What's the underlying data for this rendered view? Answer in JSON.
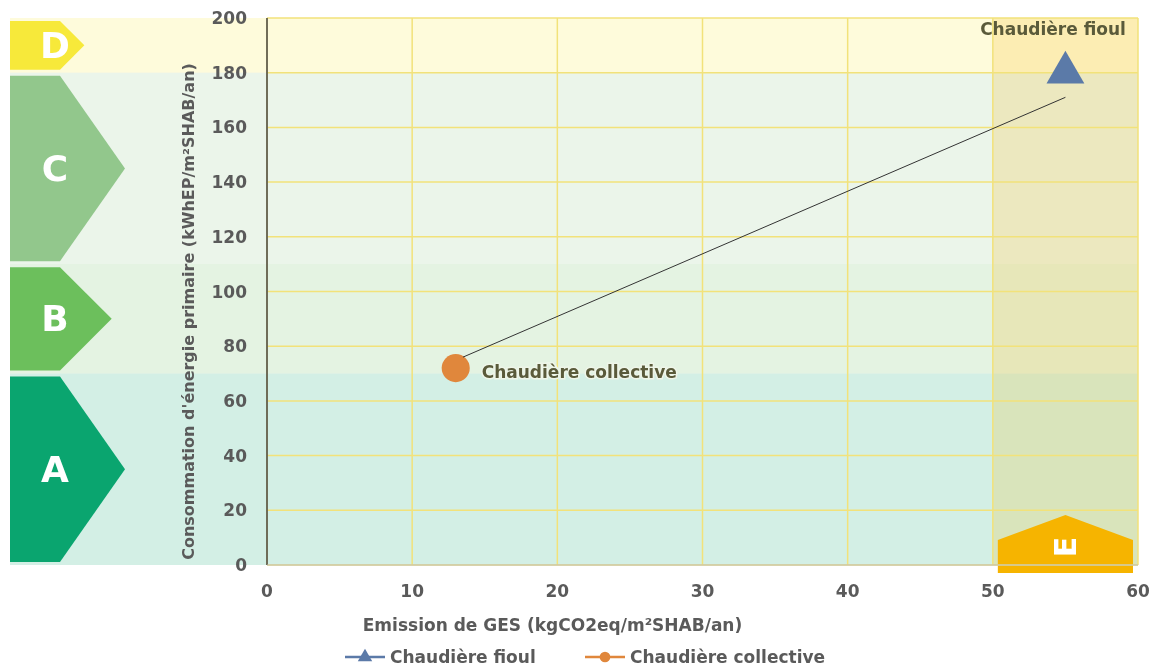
{
  "chart_data": {
    "type": "scatter",
    "xlabel": "Emission de GES (kgCO2eq/m²SHAB/an)",
    "ylabel": "Consommation d'énergie primaire (kWhEP/m²SHAB/an)",
    "xlim": [
      0,
      60
    ],
    "xticks": [
      0,
      10,
      20,
      30,
      40,
      50,
      60
    ],
    "ylim": [
      0,
      200
    ],
    "yticks": [
      0,
      20,
      40,
      60,
      80,
      100,
      120,
      140,
      160,
      180,
      200
    ],
    "grid": true,
    "legend": "bottom",
    "series": [
      {
        "name": "Chaudière fioul",
        "color": "#5b7aa8",
        "marker": "triangle",
        "x": [
          55
        ],
        "values": [
          180
        ]
      },
      {
        "name": "Chaudière collective",
        "color": "#e0873c",
        "marker": "circle",
        "x": [
          13
        ],
        "values": [
          72
        ]
      },
      {
        "type": "line",
        "color": "#333333",
        "x": [
          13.5,
          55
        ],
        "values": [
          76,
          171
        ]
      }
    ],
    "bands": [
      {
        "axis": "y",
        "from": 0,
        "to": 70,
        "label": "A",
        "color": "#0aa56f"
      },
      {
        "axis": "y",
        "from": 70,
        "to": 110,
        "label": "B",
        "color": "#6cbf5c"
      },
      {
        "axis": "y",
        "from": 110,
        "to": 180,
        "label": "C",
        "color": "#92c78c"
      },
      {
        "axis": "y",
        "from": 180,
        "to": 200,
        "label": "D",
        "color": "#f7e93a"
      },
      {
        "axis": "x",
        "from": 50,
        "to": 60,
        "label": "E",
        "color": "#f6b400"
      }
    ]
  }
}
